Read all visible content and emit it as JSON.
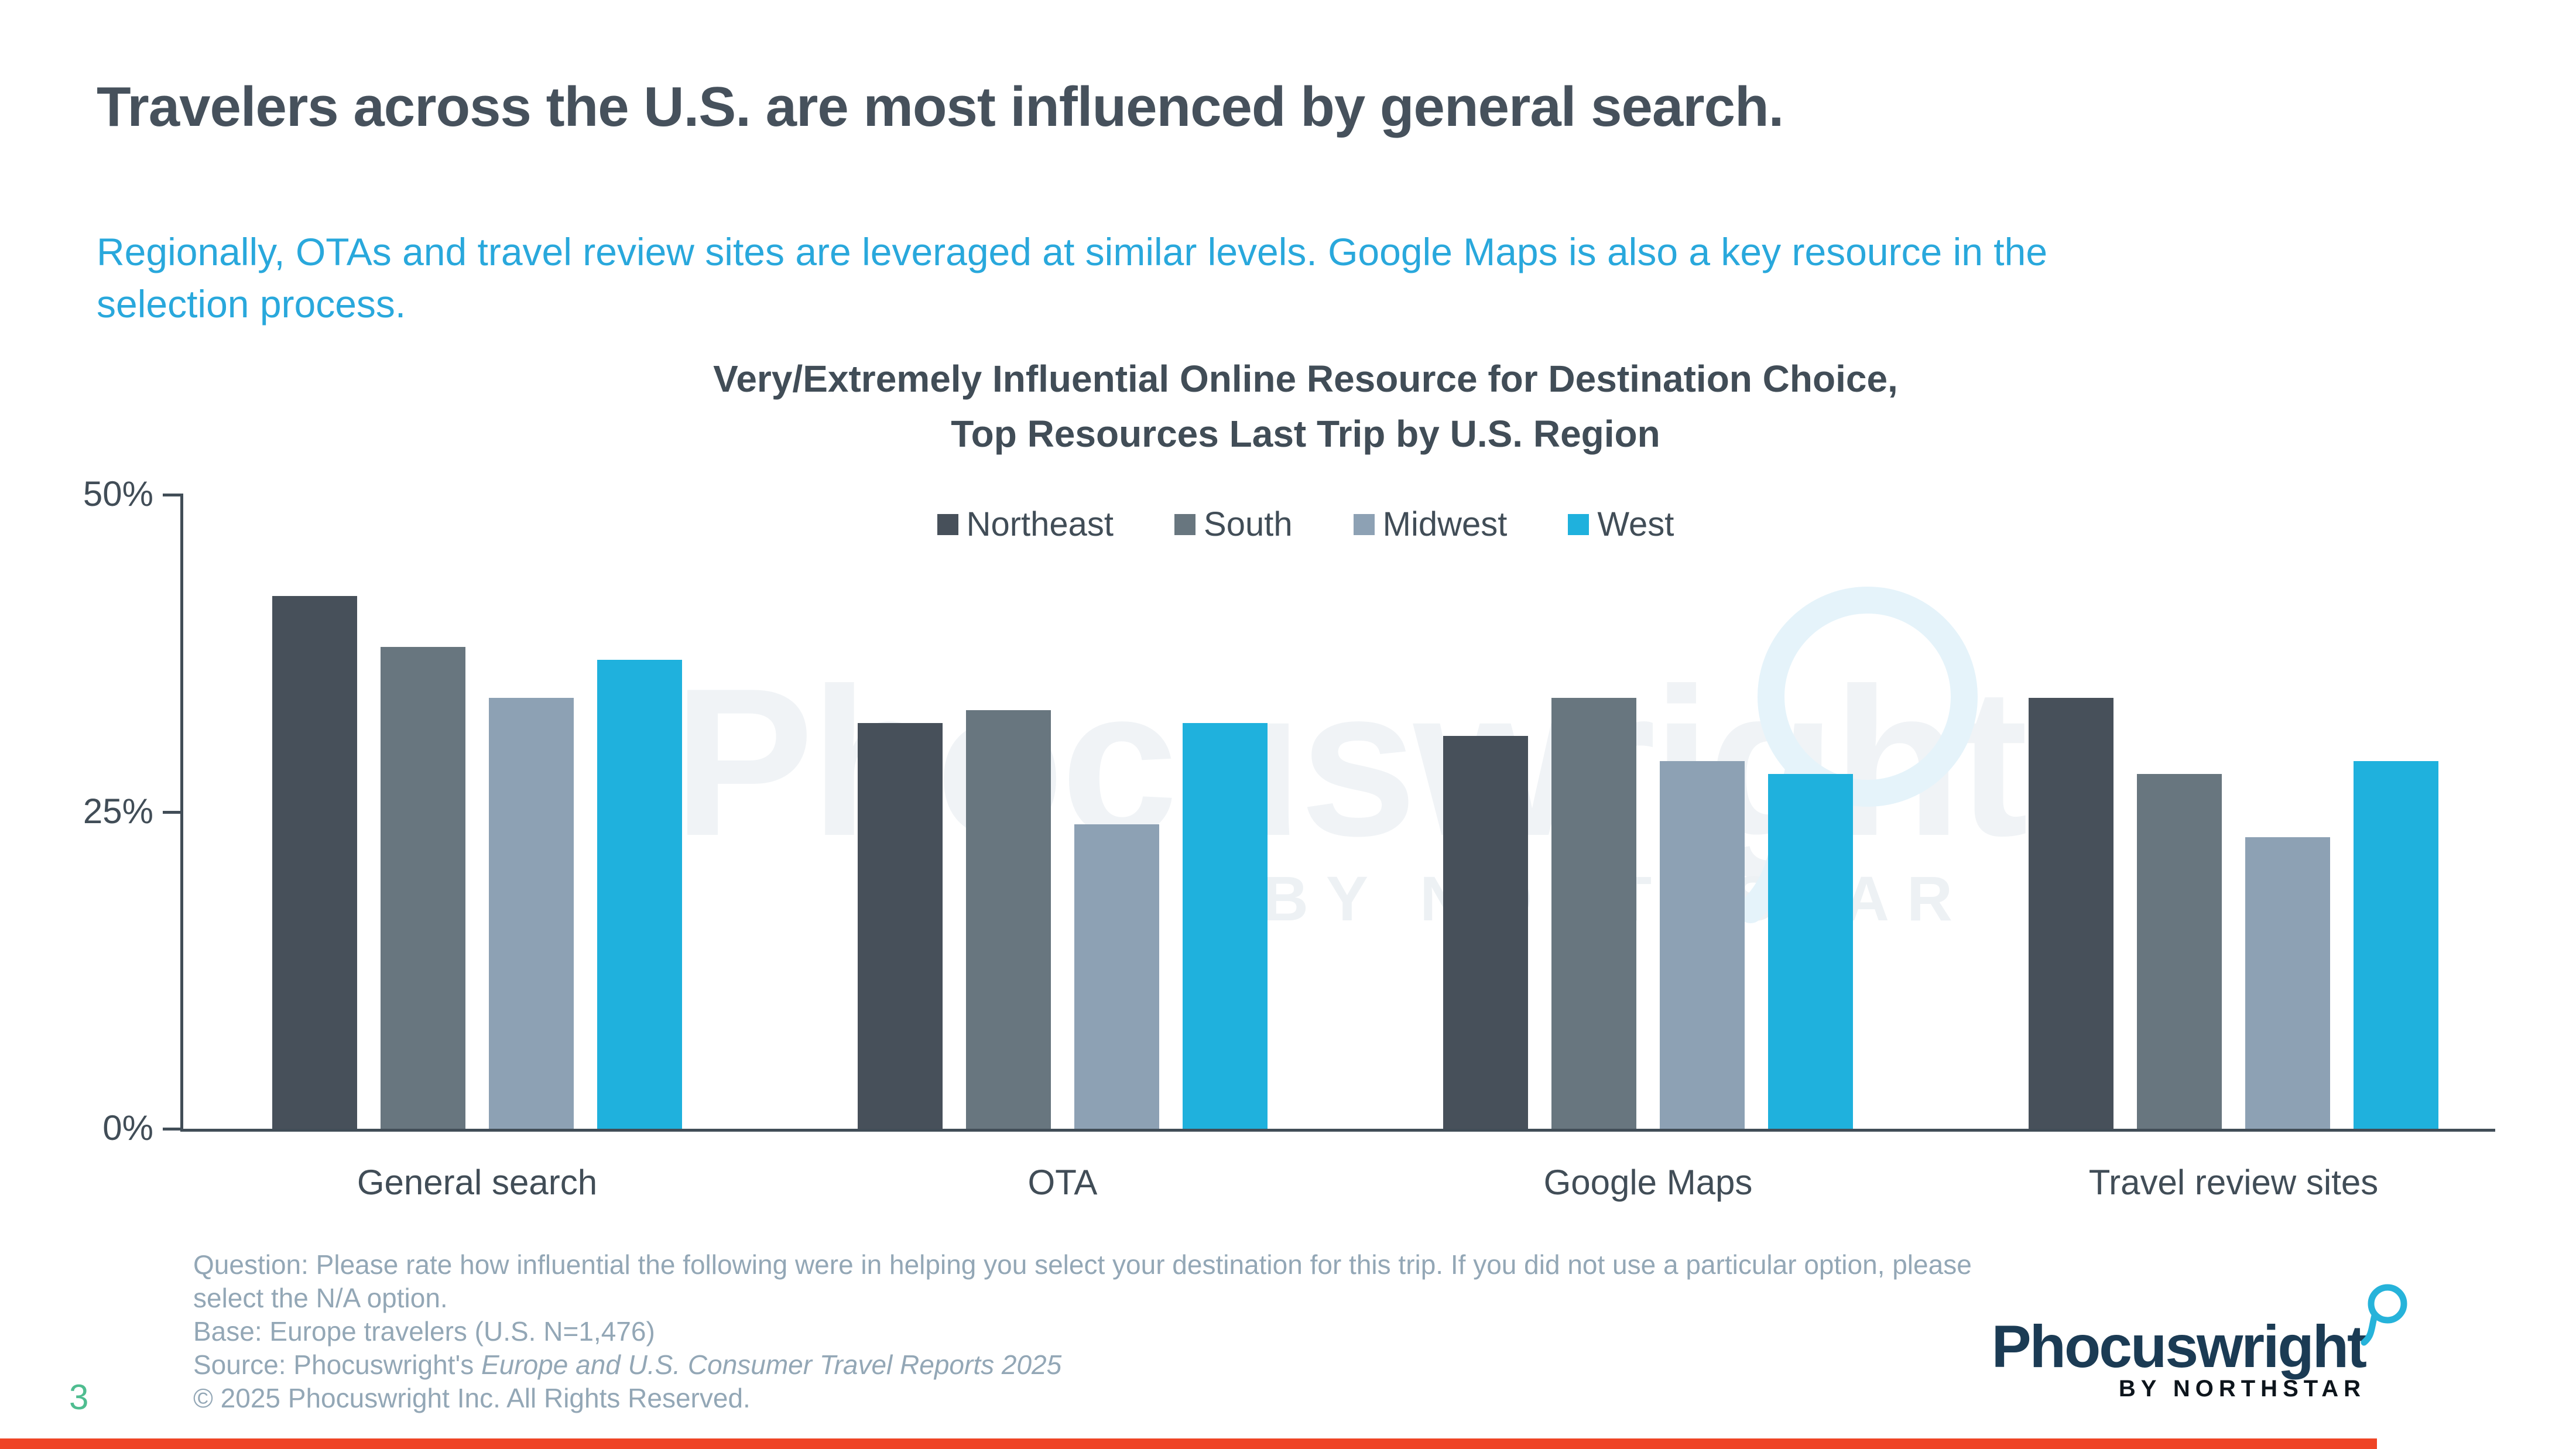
{
  "slide": {
    "title": "Travelers across the U.S. are most influenced by general search.",
    "subtitle_lines": [
      "Regionally, OTAs and travel review sites are leveraged at similar levels. Google Maps is also a key resource in the",
      "selection process."
    ],
    "page_number": "3"
  },
  "chart_data": {
    "type": "bar",
    "title_lines": [
      "Very/Extremely Influential Online Resource for Destination Choice,",
      "Top Resources Last Trip by U.S. Region"
    ],
    "categories": [
      "General search",
      "OTA",
      "Google Maps",
      "Travel review sites"
    ],
    "series": [
      {
        "name": "Northeast",
        "color": "#47505A",
        "values": [
          42,
          32,
          31,
          34
        ]
      },
      {
        "name": "South",
        "color": "#68767F",
        "values": [
          38,
          33,
          34,
          28
        ]
      },
      {
        "name": "Midwest",
        "color": "#8DA1B4",
        "values": [
          34,
          24,
          29,
          23
        ]
      },
      {
        "name": "West",
        "color": "#1FB1DD",
        "values": [
          37,
          32,
          28,
          29
        ]
      }
    ],
    "unit": "%",
    "ylim": [
      0,
      50
    ],
    "yticks": [
      {
        "label": "50%",
        "value": 50
      },
      {
        "label": "25%",
        "value": 25
      },
      {
        "label": "0%",
        "value": 0
      }
    ],
    "legend_position": "top-center",
    "grid": "off"
  },
  "watermark": {
    "text": "Phocuswright",
    "subtext": "BY NORTHSTAR"
  },
  "footer": {
    "question_lines": [
      "Question: Please rate how influential the following were in helping you select your destination for this trip. If you did not use a particular option, please",
      "select the N/A option."
    ],
    "base": "Base: Europe travelers (U.S. N=1,476)",
    "source_prefix": "Source: Phocuswright's ",
    "source_italic": "Europe and U.S. Consumer Travel Reports 2025",
    "copyright": "© 2025 Phocuswright Inc. All Rights Reserved."
  },
  "logo": {
    "name": "Phocuswright",
    "byline": "BY NORTHSTAR"
  }
}
